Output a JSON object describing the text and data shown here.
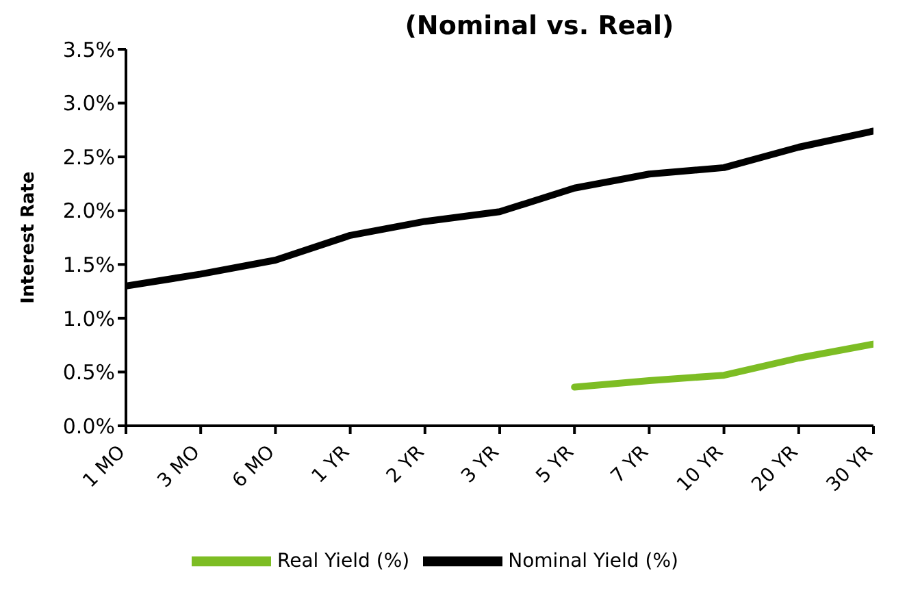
{
  "chart_data": {
    "type": "line",
    "title": "(Nominal vs. Real)",
    "ylabel": "Interest Rate",
    "categories": [
      "1 MO",
      "3 MO",
      "6 MO",
      "1 YR",
      "2 YR",
      "3 YR",
      "5 YR",
      "7 YR",
      "10 YR",
      "20 YR",
      "30 YR"
    ],
    "series": [
      {
        "name": "Real Yield (%)",
        "color": "#7dbd24",
        "values": [
          null,
          null,
          null,
          null,
          null,
          null,
          0.36,
          0.42,
          0.47,
          0.63,
          0.76
        ]
      },
      {
        "name": "Nominal Yield (%)",
        "color": "#000000",
        "values": [
          1.3,
          1.41,
          1.54,
          1.77,
          1.9,
          1.99,
          2.21,
          2.34,
          2.4,
          2.59,
          2.74
        ]
      }
    ],
    "ylim": [
      0,
      3.5
    ],
    "yticks": [
      {
        "value": 0,
        "label": "0.0%"
      },
      {
        "value": 0.5,
        "label": "0.5%"
      },
      {
        "value": 1,
        "label": "1.0%"
      },
      {
        "value": 1.5,
        "label": "1.5%"
      },
      {
        "value": 2,
        "label": "2.0%"
      },
      {
        "value": 2.5,
        "label": "2.5%"
      },
      {
        "value": 3,
        "label": "3.0%"
      },
      {
        "value": 3.5,
        "label": "3.5%"
      }
    ],
    "grid": false,
    "legend": "bottom",
    "marker": "none",
    "line_style": "solid"
  }
}
